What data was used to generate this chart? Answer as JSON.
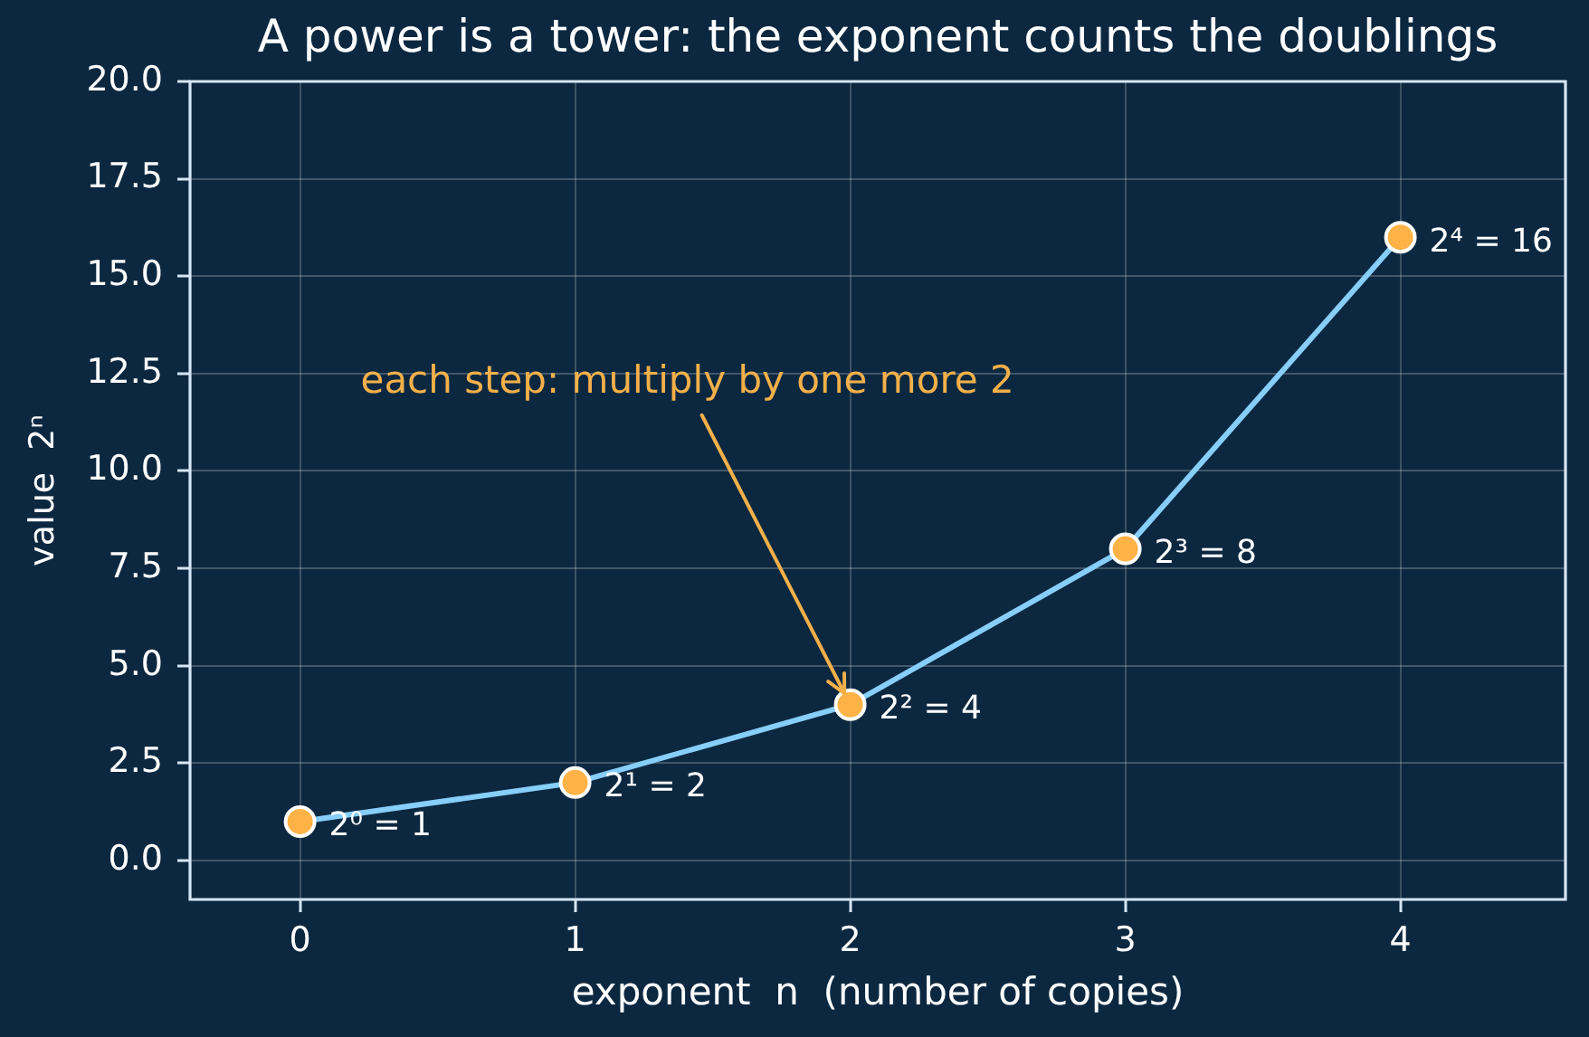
{
  "chart_data": {
    "type": "line",
    "title": "A power is a tower: the exponent counts the doublings",
    "xlabel": "exponent  n  (number of copies)",
    "ylabel": "value  2ⁿ",
    "x": [
      0,
      1,
      2,
      3,
      4
    ],
    "series": [
      {
        "color": "#87cefa",
        "colors": [
          "#ffb347",
          "#ffb347",
          "#ffb347",
          "#ffb347",
          "#ffb347"
        ],
        "values": [
          1,
          2,
          4,
          8,
          16
        ],
        "value_labels": [
          "2⁰ = 1",
          "2¹ = 2",
          "2² = 4",
          "2³ = 8",
          "2⁴ = 16"
        ]
      }
    ],
    "xlim": [
      -0.4,
      4.6
    ],
    "ylim": [
      -1,
      20
    ],
    "xticks": [
      0,
      1,
      2,
      3,
      4
    ],
    "yticks": [
      {
        "value": 0,
        "label": "0.0"
      },
      2.5,
      {
        "value": 5,
        "label": "5.0"
      },
      7.5,
      {
        "value": 10,
        "label": "10.0"
      },
      12.5,
      {
        "value": 15,
        "label": "15.0"
      },
      17.5,
      {
        "value": 20,
        "label": "20.0"
      }
    ],
    "grid": true,
    "marker": "circle",
    "annotations": [
      {
        "text": "each step: multiply by one more 2",
        "x": 2,
        "y": 4
      }
    ]
  }
}
